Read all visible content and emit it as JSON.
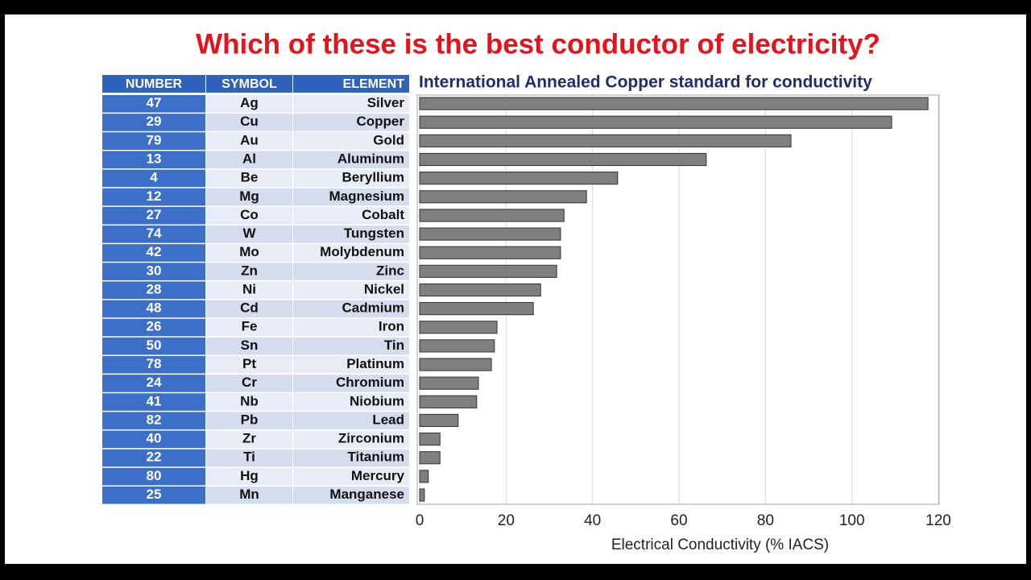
{
  "title": "Which of these is the best conductor of electricity?",
  "table": {
    "columns": [
      "NUMBER",
      "SYMBOL",
      "ELEMENT"
    ],
    "rows": [
      [
        "47",
        "Ag",
        "Silver"
      ],
      [
        "29",
        "Cu",
        "Copper"
      ],
      [
        "79",
        "Au",
        "Gold"
      ],
      [
        "13",
        "Al",
        "Aluminum"
      ],
      [
        "4",
        "Be",
        "Beryllium"
      ],
      [
        "12",
        "Mg",
        "Magnesium"
      ],
      [
        "27",
        "Co",
        "Cobalt"
      ],
      [
        "74",
        "W",
        "Tungsten"
      ],
      [
        "42",
        "Mo",
        "Molybdenum"
      ],
      [
        "30",
        "Zn",
        "Zinc"
      ],
      [
        "28",
        "Ni",
        "Nickel"
      ],
      [
        "48",
        "Cd",
        "Cadmium"
      ],
      [
        "26",
        "Fe",
        "Iron"
      ],
      [
        "50",
        "Sn",
        "Tin"
      ],
      [
        "78",
        "Pt",
        "Platinum"
      ],
      [
        "24",
        "Cr",
        "Chromium"
      ],
      [
        "41",
        "Nb",
        "Niobium"
      ],
      [
        "82",
        "Pb",
        "Lead"
      ],
      [
        "40",
        "Zr",
        "Zirconium"
      ],
      [
        "22",
        "Ti",
        "Titanium"
      ],
      [
        "80",
        "Hg",
        "Mercury"
      ],
      [
        "25",
        "Mn",
        "Manganese"
      ]
    ]
  },
  "chart_data": {
    "type": "bar",
    "orientation": "horizontal",
    "title": "International Annealed Copper standard for conductivity",
    "x_label": "Electrical Conductivity (% IACS)",
    "values": [
      117.6,
      109.2,
      85.9,
      66.3,
      45.8,
      38.6,
      33.4,
      32.6,
      32.6,
      31.7,
      28,
      26.3,
      17.9,
      17.3,
      16.6,
      13.6,
      13.2,
      8.9,
      4.7,
      4.7,
      2,
      1.1
    ],
    "color": "#7f7f7f",
    "xlim": [
      0,
      120
    ],
    "xticks": [
      0,
      20,
      40,
      60,
      80,
      100,
      120
    ],
    "grid": true
  }
}
